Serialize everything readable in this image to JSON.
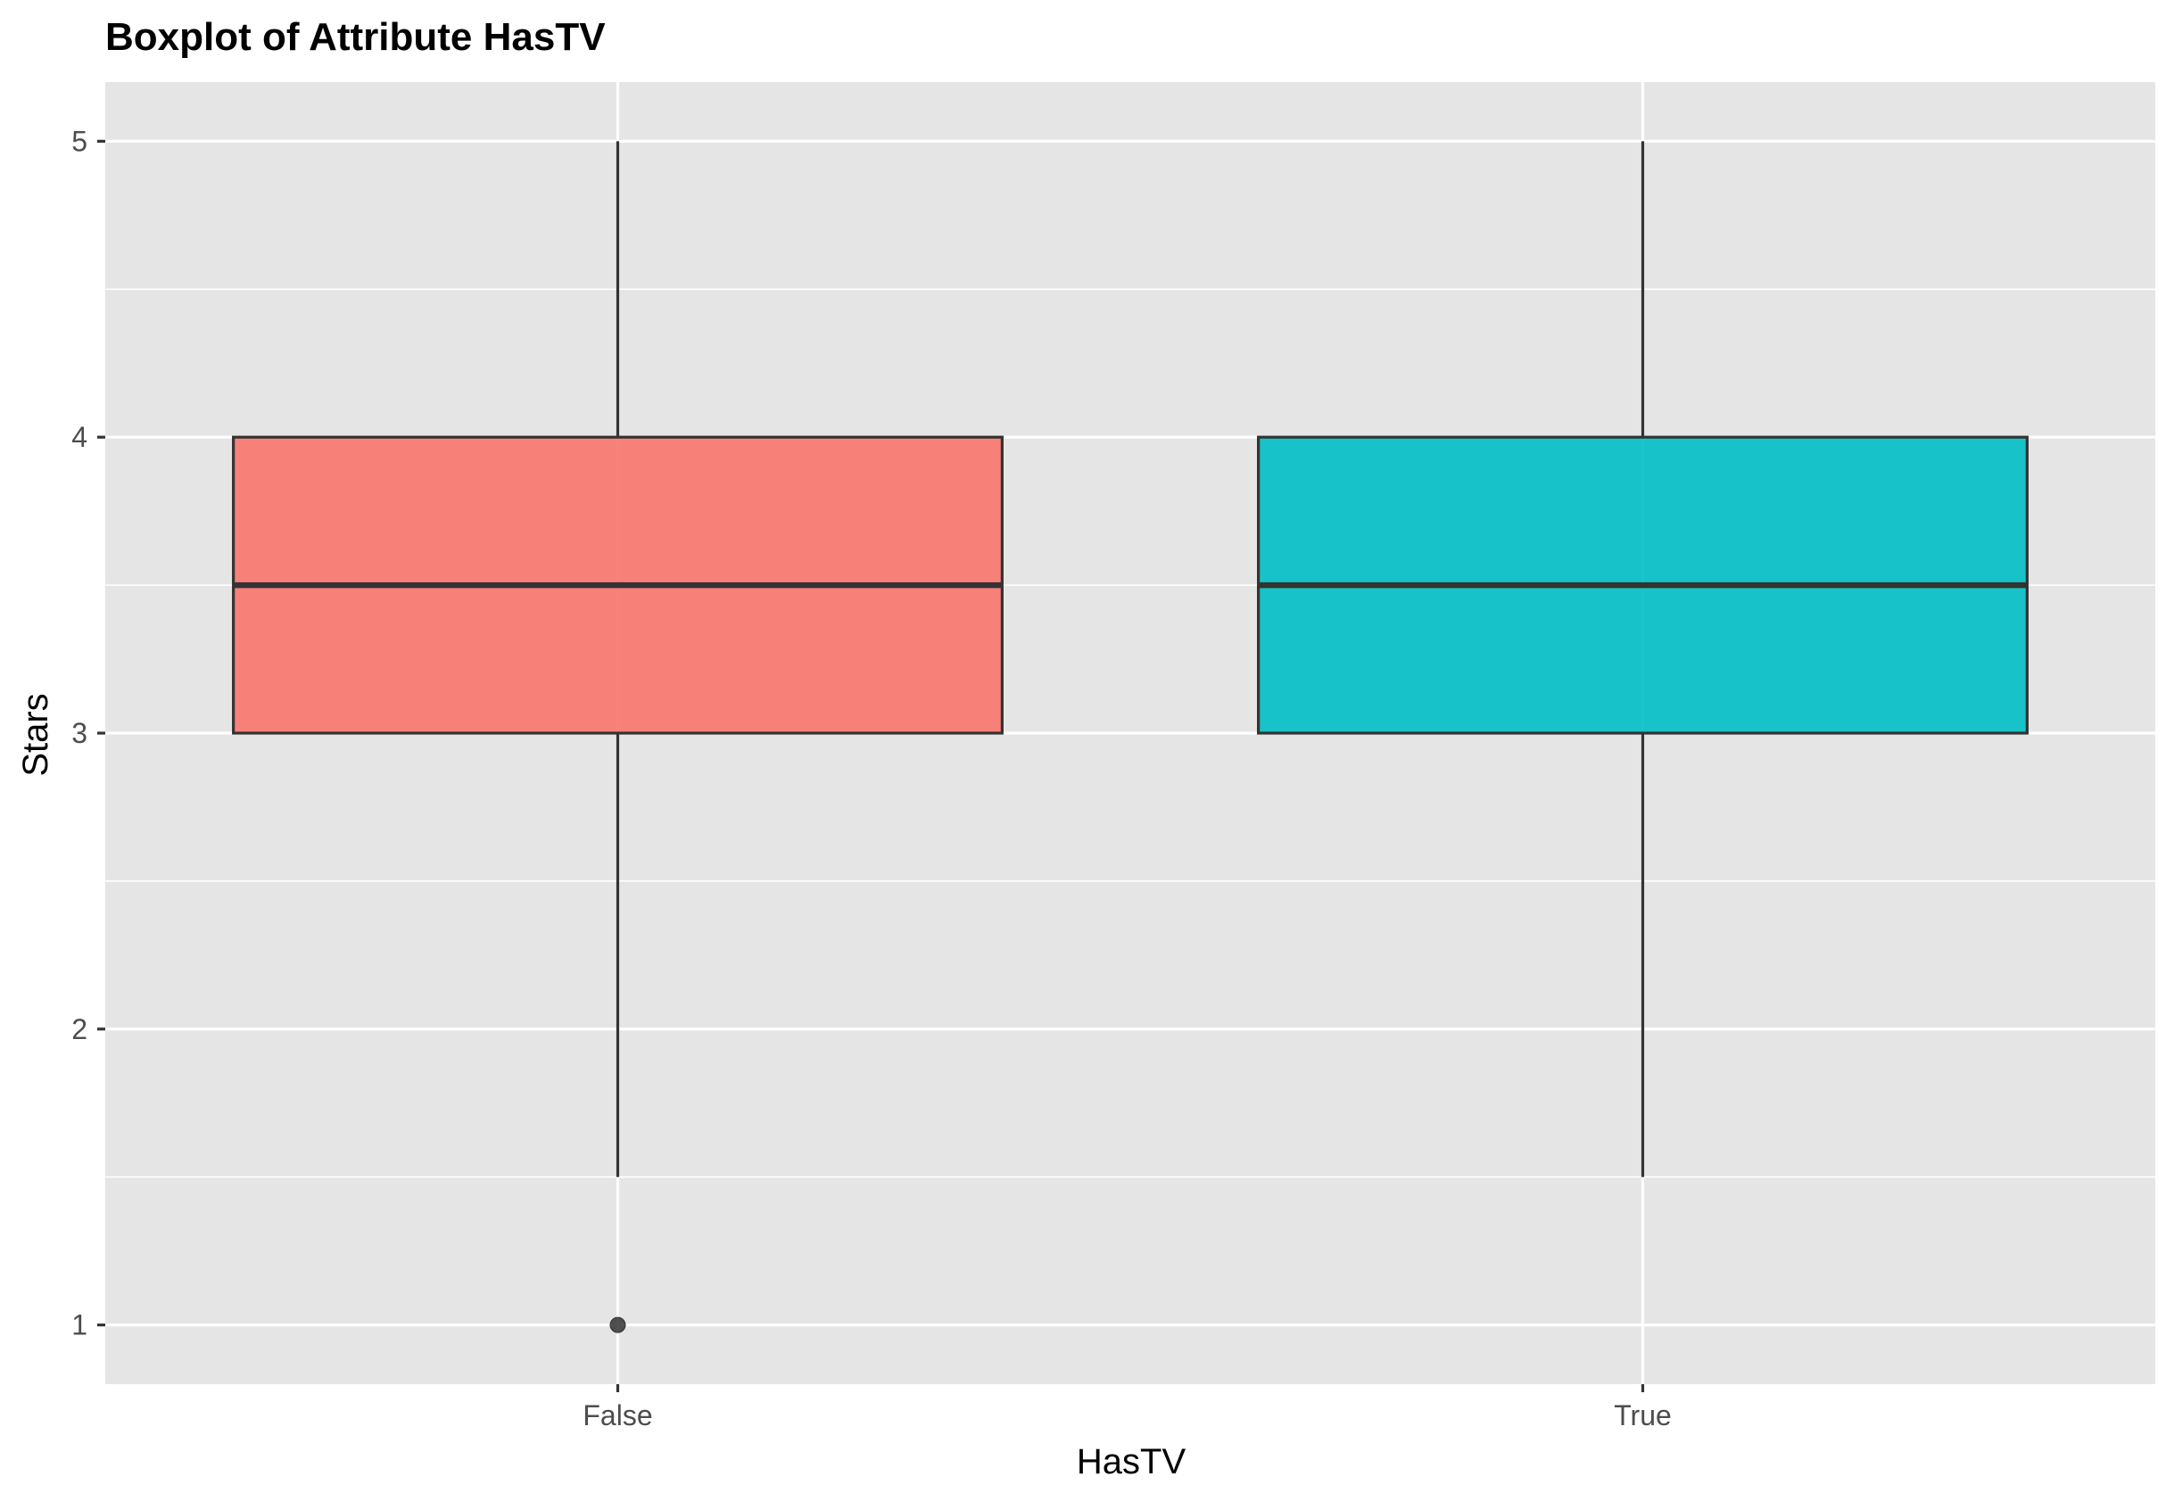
{
  "chart_data": {
    "type": "boxplot",
    "title": "Boxplot of Attribute HasTV",
    "xlabel": "HasTV",
    "ylabel": "Stars",
    "ylim": [
      0.8,
      5.2
    ],
    "yticks": [
      1,
      2,
      3,
      4,
      5
    ],
    "yticks_minor": [
      1.5,
      2.5,
      3.5,
      4.5
    ],
    "categories": [
      "False",
      "True"
    ],
    "boxes": [
      {
        "category": "False",
        "whisker_low": 1.5,
        "q1": 3,
        "median": 3.5,
        "q3": 4,
        "whisker_high": 5,
        "outliers": [
          1
        ],
        "fill": "#F8766D"
      },
      {
        "category": "True",
        "whisker_low": 1.5,
        "q1": 3,
        "median": 3.5,
        "q3": 4,
        "whisker_high": 5,
        "outliers": [],
        "fill": "#00BFC4"
      }
    ],
    "grid": true,
    "legend": "none",
    "panel_background": "#E5E5E5",
    "grid_color": "#FFFFFF",
    "line_color": "#333333"
  }
}
